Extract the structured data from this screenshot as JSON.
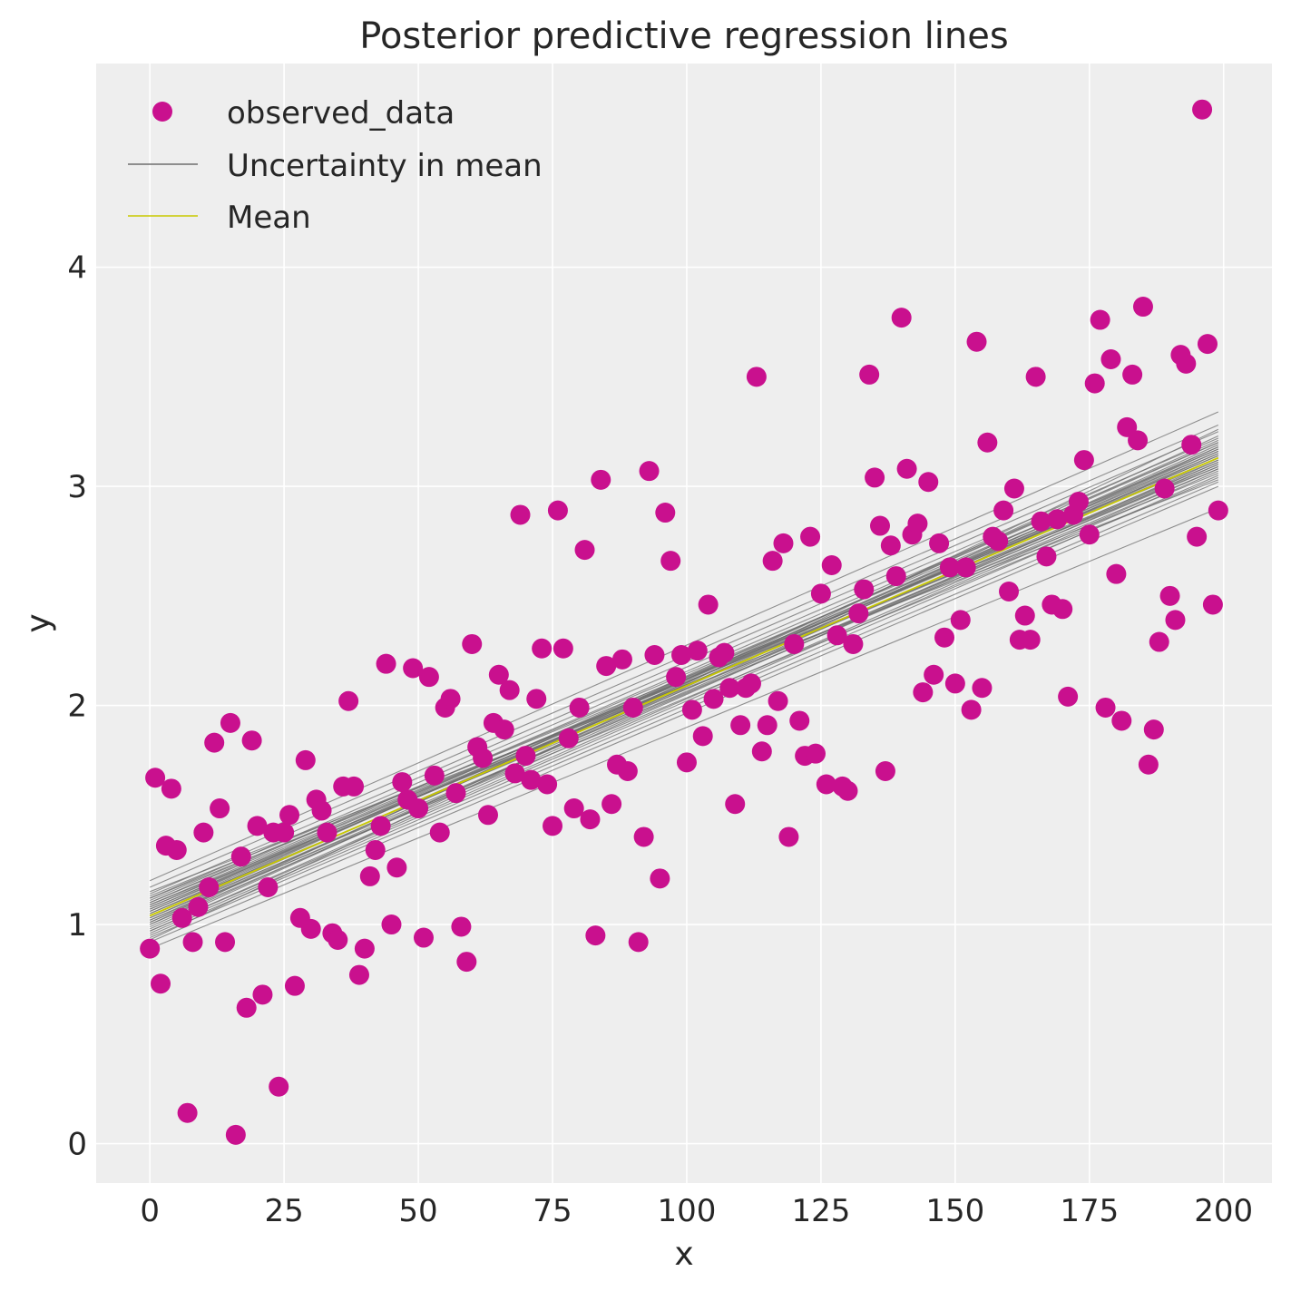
{
  "chart_data": {
    "type": "scatter",
    "title": "Posterior predictive regression lines",
    "xlabel": "x",
    "ylabel": "y",
    "xlim": [
      -10,
      209
    ],
    "ylim": [
      -0.18,
      4.93
    ],
    "xticks": [
      0,
      25,
      50,
      75,
      100,
      125,
      150,
      175,
      200
    ],
    "yticks": [
      0,
      1,
      2,
      3,
      4
    ],
    "grid": true,
    "legend_placement": "top-left",
    "colors": {
      "background": "#eeeeee",
      "grid": "#ffffff",
      "observed": "#c9108e",
      "uncertainty": "#6e6e6e",
      "mean": "#c8c800"
    },
    "series": [
      {
        "name": "observed_data",
        "kind": "points",
        "x": [
          0,
          1,
          2,
          3,
          4,
          5,
          6,
          7,
          8,
          9,
          10,
          11,
          12,
          13,
          14,
          15,
          16,
          17,
          18,
          19,
          20,
          21,
          22,
          23,
          24,
          25,
          26,
          27,
          28,
          29,
          30,
          31,
          32,
          33,
          34,
          35,
          36,
          37,
          38,
          39,
          40,
          41,
          42,
          43,
          44,
          45,
          46,
          47,
          48,
          49,
          50,
          51,
          52,
          53,
          54,
          55,
          56,
          57,
          58,
          59,
          60,
          61,
          62,
          63,
          64,
          65,
          66,
          67,
          68,
          69,
          70,
          71,
          72,
          73,
          74,
          75,
          76,
          77,
          78,
          79,
          80,
          81,
          82,
          83,
          84,
          85,
          86,
          87,
          88,
          89,
          90,
          91,
          92,
          93,
          94,
          95,
          96,
          97,
          98,
          99,
          100,
          101,
          102,
          103,
          104,
          105,
          106,
          107,
          108,
          109,
          110,
          111,
          112,
          113,
          114,
          115,
          116,
          117,
          118,
          119,
          120,
          121,
          122,
          123,
          124,
          125,
          126,
          127,
          128,
          129,
          130,
          131,
          132,
          133,
          134,
          135,
          136,
          137,
          138,
          139,
          140,
          141,
          142,
          143,
          144,
          145,
          146,
          147,
          148,
          149,
          150,
          151,
          152,
          153,
          154,
          155,
          156,
          157,
          158,
          159,
          160,
          161,
          162,
          163,
          164,
          165,
          166,
          167,
          168,
          169,
          170,
          171,
          172,
          173,
          174,
          175,
          176,
          177,
          178,
          179,
          180,
          181,
          182,
          183,
          184,
          185,
          186,
          187,
          188,
          189,
          190,
          191,
          192,
          193,
          194,
          195,
          196,
          197,
          198,
          199
        ],
        "y": [
          0.89,
          1.67,
          0.73,
          1.36,
          1.62,
          1.34,
          1.03,
          0.14,
          0.92,
          1.08,
          1.42,
          1.17,
          1.83,
          1.53,
          0.92,
          1.92,
          0.04,
          1.31,
          0.62,
          1.84,
          1.45,
          0.68,
          1.17,
          1.42,
          0.26,
          1.42,
          1.5,
          0.72,
          1.03,
          1.75,
          0.98,
          1.57,
          1.52,
          1.42,
          0.96,
          0.93,
          1.63,
          2.02,
          1.63,
          0.77,
          0.89,
          1.22,
          1.34,
          1.45,
          2.19,
          1.0,
          1.26,
          1.65,
          1.57,
          2.17,
          1.53,
          0.94,
          2.13,
          1.68,
          1.42,
          1.99,
          2.03,
          1.6,
          0.99,
          0.83,
          2.28,
          1.81,
          1.76,
          1.5,
          1.92,
          2.14,
          1.89,
          2.07,
          1.69,
          2.87,
          1.77,
          1.66,
          2.03,
          2.26,
          1.64,
          1.45,
          2.89,
          2.26,
          1.85,
          1.53,
          1.99,
          2.71,
          1.48,
          0.95,
          3.03,
          2.18,
          1.55,
          1.73,
          2.21,
          1.7,
          1.99,
          0.92,
          1.4,
          3.07,
          2.23,
          1.21,
          2.88,
          2.66,
          2.13,
          2.23,
          1.74,
          1.98,
          2.25,
          1.86,
          2.46,
          2.03,
          2.22,
          2.24,
          2.08,
          1.55,
          1.91,
          2.08,
          2.1,
          3.5,
          1.79,
          1.91,
          2.66,
          2.02,
          2.74,
          1.4,
          2.28,
          1.93,
          1.77,
          2.77,
          1.78,
          2.51,
          1.64,
          2.64,
          2.32,
          1.63,
          1.61,
          2.28,
          2.42,
          2.53,
          3.51,
          3.04,
          2.82,
          1.7,
          2.73,
          2.59,
          3.77,
          3.08,
          2.78,
          2.83,
          2.06,
          3.02,
          2.14,
          2.74,
          2.31,
          2.63,
          2.1,
          2.39,
          2.63,
          1.98,
          3.66,
          2.08,
          3.2,
          2.77,
          2.75,
          2.89,
          2.52,
          2.99,
          2.3,
          2.41,
          2.3,
          3.5,
          2.84,
          2.68,
          2.46,
          2.85,
          2.44,
          2.04,
          2.87,
          2.93,
          3.12,
          2.78,
          3.47,
          3.76,
          1.99,
          3.58,
          2.6,
          1.93,
          3.27,
          3.51,
          3.21,
          3.82,
          1.73,
          1.89,
          2.29,
          2.99,
          2.5,
          2.39,
          3.6,
          3.56,
          3.19,
          2.77,
          4.72,
          3.65,
          2.46,
          2.89
        ]
      },
      {
        "name": "Uncertainty in mean",
        "kind": "lines",
        "x_range": [
          0,
          199
        ],
        "lines": [
          [
            1.04,
            3.13
          ],
          [
            1.08,
            3.16
          ],
          [
            1.0,
            3.1
          ],
          [
            1.12,
            3.22
          ],
          [
            0.96,
            3.07
          ],
          [
            1.06,
            3.2
          ],
          [
            1.02,
            3.04
          ],
          [
            1.1,
            3.13
          ],
          [
            0.98,
            3.18
          ],
          [
            1.05,
            3.09
          ],
          [
            1.14,
            3.25
          ],
          [
            0.94,
            3.02
          ],
          [
            1.07,
            3.11
          ],
          [
            1.01,
            3.19
          ],
          [
            1.09,
            3.06
          ],
          [
            0.97,
            3.12
          ],
          [
            1.11,
            3.17
          ],
          [
            1.03,
            3.08
          ],
          [
            1.06,
            3.14
          ],
          [
            0.99,
            3.15
          ],
          [
            1.17,
            3.28
          ],
          [
            0.92,
            3.0
          ],
          [
            1.13,
            3.12
          ],
          [
            1.0,
            3.23
          ],
          [
            1.08,
            3.1
          ],
          [
            1.02,
            3.16
          ],
          [
            1.05,
            3.18
          ],
          [
            0.95,
            3.05
          ],
          [
            1.12,
            3.09
          ],
          [
            1.04,
            3.21
          ],
          [
            1.2,
            3.34
          ],
          [
            0.89,
            2.9
          ],
          [
            1.15,
            3.03
          ],
          [
            0.93,
            3.26
          ],
          [
            1.07,
            3.15
          ],
          [
            1.01,
            3.11
          ],
          [
            1.1,
            3.2
          ],
          [
            0.97,
            3.08
          ],
          [
            1.09,
            3.14
          ],
          [
            1.03,
            3.17
          ]
        ]
      },
      {
        "name": "Mean",
        "kind": "line",
        "x_range": [
          0,
          199
        ],
        "y_range": [
          1.04,
          3.13
        ]
      }
    ]
  }
}
